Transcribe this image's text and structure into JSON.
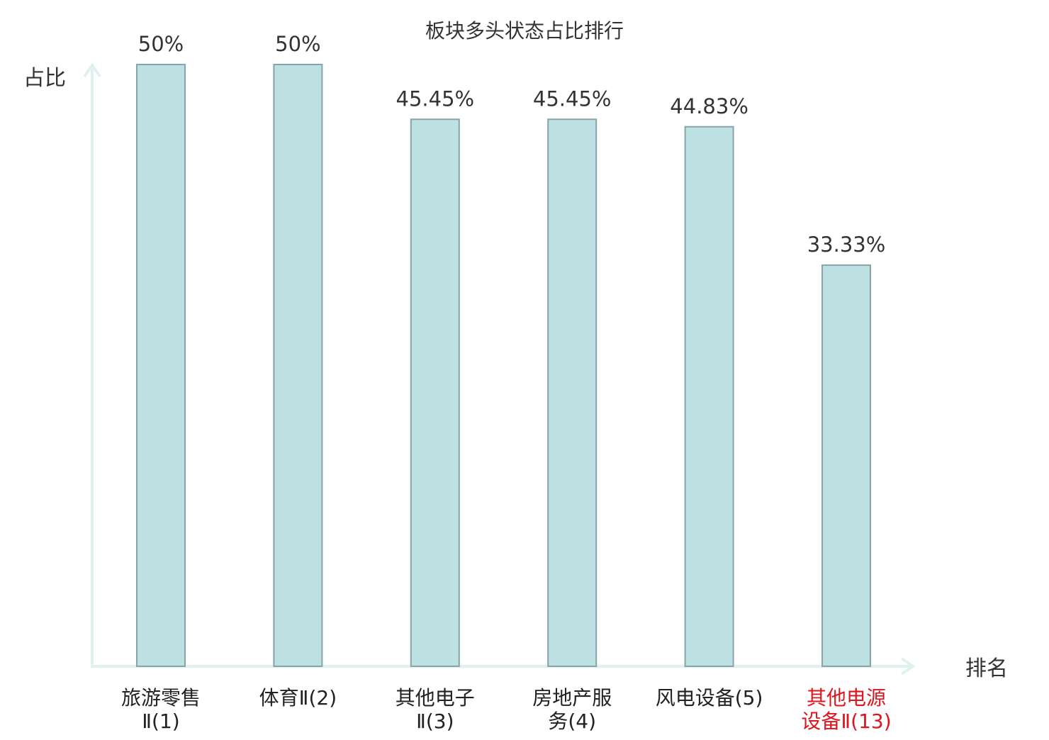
{
  "chart_data": {
    "type": "bar",
    "title": "板块多头状态占比排行",
    "ylabel": "占比",
    "xlabel": "排名",
    "ylim": [
      0,
      50
    ],
    "grid": false,
    "categories": [
      [
        "旅游零售",
        "Ⅱ(1)"
      ],
      [
        "体育Ⅱ(2)"
      ],
      [
        "其他电子",
        "Ⅱ(3)"
      ],
      [
        "房地产服",
        "务(4)"
      ],
      [
        "风电设备(5)"
      ],
      [
        "其他电源",
        "设备Ⅱ(13)"
      ]
    ],
    "values": [
      50,
      50,
      45.45,
      45.45,
      44.83,
      33.33
    ],
    "value_labels": [
      "50%",
      "50%",
      "45.45%",
      "45.45%",
      "44.83%",
      "33.33%"
    ],
    "highlight_index": 5,
    "colors": {
      "bar_fill": "#bde0e3",
      "bar_stroke": "#86a5a8",
      "axis": "#e0f2ef",
      "text": "#333333",
      "highlight_text": "#e0141e"
    }
  }
}
